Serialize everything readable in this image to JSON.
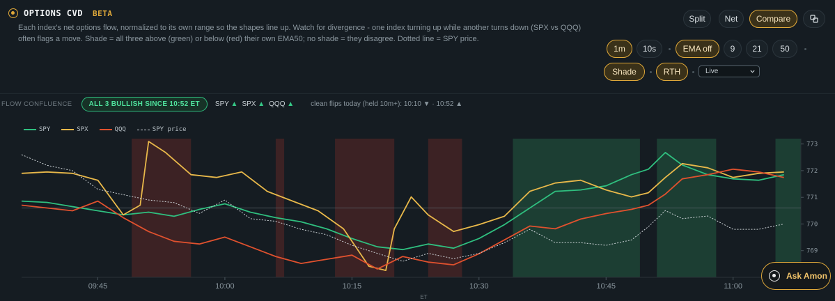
{
  "header": {
    "title": "OPTIONS CVD",
    "badge": "BETA",
    "description": "Each index's net options flow, normalized to its own range so the shapes line up. Watch for divergence - one index turning up while another turns down (SPX vs QQQ) often flags a move. Shade = all three above (green) or below (red) their own EMA50; no shade = they disagree. Dotted line = SPY price."
  },
  "controls": {
    "view_buttons": [
      {
        "label": "Split",
        "active": false
      },
      {
        "label": "Net",
        "active": false
      },
      {
        "label": "Compare",
        "active": true
      }
    ],
    "popout_icon": "popout-icon",
    "interval_buttons": [
      {
        "label": "1m",
        "active": true
      },
      {
        "label": "10s",
        "active": false
      }
    ],
    "ema_toggle": {
      "label": "EMA off",
      "active": true
    },
    "ema_periods": [
      "9",
      "21",
      "50"
    ],
    "shade_toggle": {
      "label": "Shade",
      "active": true
    },
    "rth_toggle": {
      "label": "RTH",
      "active": true
    },
    "mode_select": {
      "value": "Live"
    }
  },
  "confluence": {
    "label": "FLOW CONFLUENCE",
    "badge": "ALL 3 BULLISH SINCE 10:52 ET",
    "tickers": [
      {
        "name": "SPY",
        "arrow": "▲"
      },
      {
        "name": "SPX",
        "arrow": "▲"
      },
      {
        "name": "QQQ",
        "arrow": "▲"
      }
    ],
    "flips_text": "clean flips today (held 10m+): 10:10",
    "flip_arrow_1": "▼",
    "flips_sep": "· 10:52",
    "flip_arrow_2": "▲"
  },
  "ask_button": {
    "label": "Ask Amon"
  },
  "colors": {
    "spy": "#2fbf7f",
    "spx": "#e8b84a",
    "qqq": "#e0512e",
    "price": "#cfd5d9",
    "bull_shade": "#1f4a39",
    "bear_shade": "#4a2426",
    "accent": "#e0a93a"
  },
  "chart_data": {
    "type": "line",
    "xlabel": "ET",
    "x_ticks": [
      "09:45",
      "10:00",
      "10:15",
      "10:30",
      "10:45",
      "11:00"
    ],
    "x_range": [
      "09:36",
      "11:08"
    ],
    "y_right_ticks": [
      773,
      772,
      771,
      770,
      769
    ],
    "y_right_range": [
      768.0,
      773.2
    ],
    "y_left_range_norm": [
      0,
      1
    ],
    "legend": [
      "SPY",
      "SPX",
      "QQQ",
      "SPY price"
    ],
    "legend_position": "top-left",
    "reference_line_norm": 0.5,
    "shaded_regions": [
      {
        "start": "09:49",
        "end": "09:56",
        "state": "bear"
      },
      {
        "start": "10:06",
        "end": "10:07",
        "state": "bear"
      },
      {
        "start": "10:13",
        "end": "10:20",
        "state": "bear"
      },
      {
        "start": "10:24",
        "end": "10:28",
        "state": "bear"
      },
      {
        "start": "10:34",
        "end": "10:49",
        "state": "bull"
      },
      {
        "start": "10:51",
        "end": "10:58",
        "state": "bull"
      },
      {
        "start": "11:05",
        "end": "11:08",
        "state": "bull"
      }
    ],
    "series": [
      {
        "name": "SPY",
        "x": [
          "09:36",
          "09:39",
          "09:42",
          "09:45",
          "09:48",
          "09:51",
          "09:54",
          "09:57",
          "10:00",
          "10:03",
          "10:06",
          "10:09",
          "10:12",
          "10:15",
          "10:18",
          "10:21",
          "10:24",
          "10:27",
          "10:30",
          "10:33",
          "10:36",
          "10:39",
          "10:42",
          "10:45",
          "10:48",
          "10:50",
          "10:52",
          "10:54",
          "10:57",
          "11:00",
          "11:03",
          "11:06"
        ],
        "values": [
          0.55,
          0.54,
          0.51,
          0.48,
          0.45,
          0.47,
          0.44,
          0.49,
          0.53,
          0.47,
          0.43,
          0.4,
          0.35,
          0.28,
          0.22,
          0.2,
          0.24,
          0.21,
          0.28,
          0.38,
          0.5,
          0.62,
          0.63,
          0.66,
          0.74,
          0.78,
          0.9,
          0.81,
          0.74,
          0.71,
          0.7,
          0.74
        ]
      },
      {
        "name": "SPX",
        "x": [
          "09:36",
          "09:39",
          "09:42",
          "09:45",
          "09:48",
          "09:50",
          "09:51",
          "09:53",
          "09:56",
          "09:59",
          "10:02",
          "10:05",
          "10:08",
          "10:11",
          "10:14",
          "10:17",
          "10:19",
          "10:20",
          "10:22",
          "10:24",
          "10:27",
          "10:30",
          "10:33",
          "10:36",
          "10:39",
          "10:42",
          "10:45",
          "10:48",
          "10:50",
          "10:52",
          "10:54",
          "10:57",
          "11:00",
          "11:03",
          "11:06"
        ],
        "values": [
          0.75,
          0.76,
          0.75,
          0.7,
          0.45,
          0.52,
          0.98,
          0.9,
          0.74,
          0.72,
          0.76,
          0.62,
          0.55,
          0.48,
          0.35,
          0.08,
          0.05,
          0.35,
          0.58,
          0.45,
          0.33,
          0.38,
          0.44,
          0.62,
          0.68,
          0.7,
          0.63,
          0.58,
          0.61,
          0.72,
          0.82,
          0.79,
          0.72,
          0.75,
          0.76
        ]
      },
      {
        "name": "QQQ",
        "x": [
          "09:36",
          "09:39",
          "09:42",
          "09:45",
          "09:48",
          "09:51",
          "09:54",
          "09:57",
          "10:00",
          "10:03",
          "10:06",
          "10:09",
          "10:12",
          "10:15",
          "10:18",
          "10:21",
          "10:24",
          "10:27",
          "10:30",
          "10:33",
          "10:36",
          "10:39",
          "10:42",
          "10:45",
          "10:48",
          "10:50",
          "10:52",
          "10:54",
          "10:57",
          "11:00",
          "11:03",
          "11:06"
        ],
        "values": [
          0.52,
          0.5,
          0.48,
          0.55,
          0.43,
          0.33,
          0.26,
          0.24,
          0.29,
          0.22,
          0.15,
          0.1,
          0.13,
          0.16,
          0.06,
          0.15,
          0.11,
          0.09,
          0.17,
          0.27,
          0.37,
          0.35,
          0.42,
          0.46,
          0.49,
          0.52,
          0.6,
          0.71,
          0.74,
          0.78,
          0.76,
          0.72
        ]
      },
      {
        "name": "SPY price",
        "x": [
          "09:36",
          "09:39",
          "09:42",
          "09:45",
          "09:48",
          "09:51",
          "09:54",
          "09:57",
          "10:00",
          "10:03",
          "10:06",
          "10:09",
          "10:12",
          "10:15",
          "10:18",
          "10:21",
          "10:24",
          "10:27",
          "10:30",
          "10:33",
          "10:36",
          "10:39",
          "10:42",
          "10:45",
          "10:48",
          "10:50",
          "10:52",
          "10:54",
          "10:57",
          "11:00",
          "11:03",
          "11:06"
        ],
        "values": [
          772.6,
          772.2,
          772.0,
          771.3,
          771.1,
          770.9,
          770.8,
          770.4,
          770.9,
          770.2,
          770.1,
          769.8,
          769.6,
          769.2,
          768.9,
          768.6,
          768.9,
          768.7,
          768.9,
          769.3,
          769.8,
          769.3,
          769.3,
          769.2,
          769.4,
          769.9,
          770.5,
          770.2,
          770.3,
          769.8,
          769.8,
          770.0
        ]
      }
    ]
  }
}
